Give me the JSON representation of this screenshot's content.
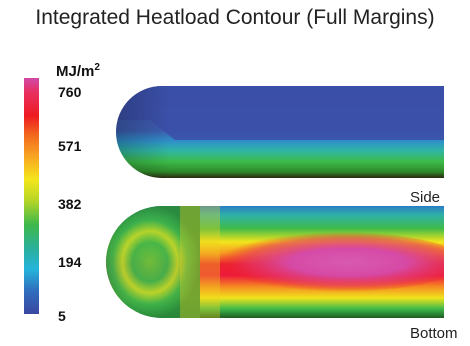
{
  "title": "Integrated Heatload Contour (Full Margins)",
  "colorbar": {
    "unit_base": "MJ/m",
    "unit_exp": "2",
    "ticks": [
      "760",
      "571",
      "382",
      "194",
      "5"
    ]
  },
  "views": {
    "side": "Side",
    "bottom": "Bottom"
  }
}
